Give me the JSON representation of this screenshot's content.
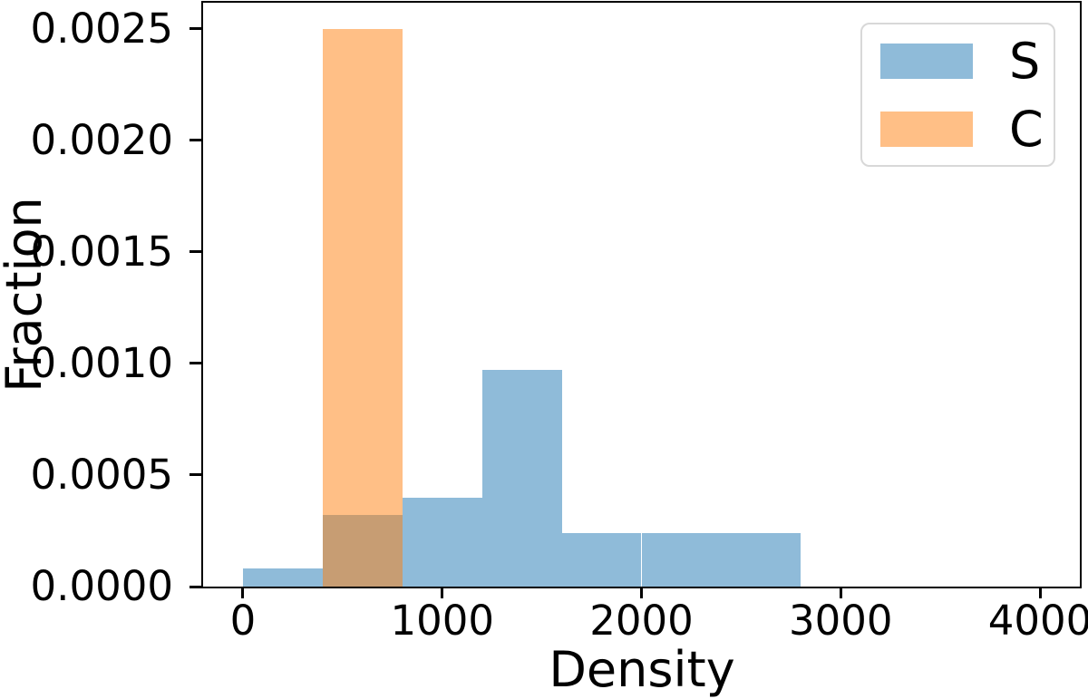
{
  "chart_data": {
    "type": "bar",
    "subtype": "overlapping-histogram",
    "xlabel": "Density",
    "ylabel": "Fraction",
    "xlim": [
      -200,
      4200
    ],
    "ylim": [
      0,
      0.002617
    ],
    "grid": false,
    "x_ticks": [
      {
        "value": 0,
        "label": "0"
      },
      {
        "value": 1000,
        "label": "1000"
      },
      {
        "value": 2000,
        "label": "2000"
      },
      {
        "value": 3000,
        "label": "3000"
      },
      {
        "value": 4000,
        "label": "4000"
      }
    ],
    "y_ticks": [
      {
        "value": 0.0,
        "label": "0.0000"
      },
      {
        "value": 0.0005,
        "label": "0.0005"
      },
      {
        "value": 0.001,
        "label": "0.0010"
      },
      {
        "value": 0.0015,
        "label": "0.0015"
      },
      {
        "value": 0.002,
        "label": "0.0020"
      },
      {
        "value": 0.0025,
        "label": "0.0025"
      }
    ],
    "series": [
      {
        "name": "S",
        "color": "rgba(31,119,180,0.5)",
        "bin_edges": [
          0,
          400,
          800,
          1200,
          1600,
          2000,
          2400,
          2800
        ],
        "heights": [
          8e-05,
          0.00032,
          0.0004,
          0.00097,
          0.00024,
          0.00024,
          0.00024
        ]
      },
      {
        "name": "C",
        "color": "rgba(255,127,14,0.5)",
        "bin_edges": [
          400,
          800
        ],
        "heights": [
          0.0025
        ]
      }
    ],
    "legend": {
      "position": "upper right",
      "entries": [
        "S",
        "C"
      ]
    }
  }
}
